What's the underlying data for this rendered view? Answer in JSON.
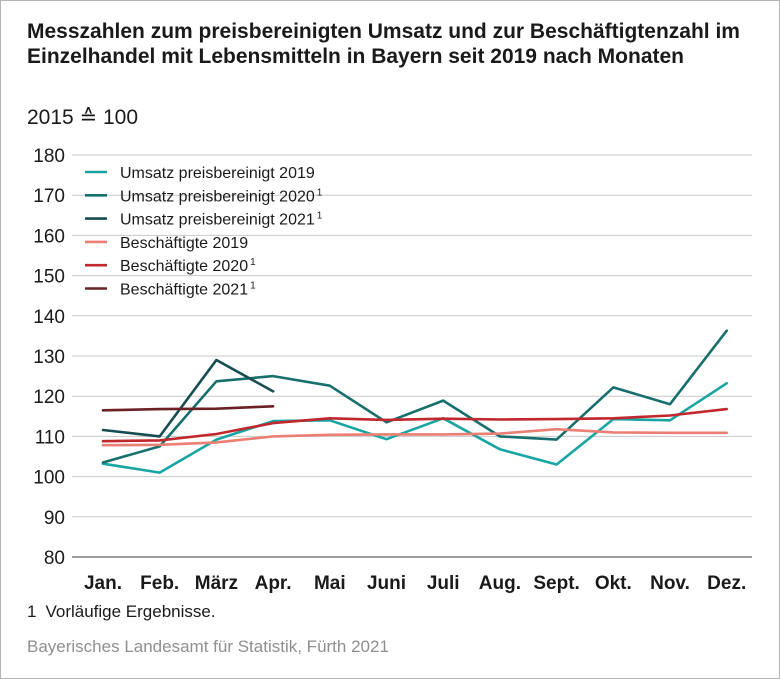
{
  "title": "Messzahlen zum preisbereinigten Umsatz und zur Beschäftigtenzahl im Einzelhandel mit Lebensmitteln in Bayern seit 2019 nach Monaten",
  "subtitle": "2015 ≙ 100",
  "footnote": {
    "number": "1",
    "text": "Vorläufige Ergebnisse."
  },
  "source": "Bayerisches Landesamt für Statistik, Fürth 2021",
  "chart_data": {
    "type": "line",
    "title": "Messzahlen zum preisbereinigten Umsatz und zur Beschäftigtenzahl im Einzelhandel mit Lebensmitteln in Bayern seit 2019 nach Monaten",
    "subtitle": "2015 ≙ 100",
    "xlabel": "",
    "ylabel": "",
    "categories": [
      "Jan.",
      "Feb.",
      "März",
      "Apr.",
      "Mai",
      "Juni",
      "Juli",
      "Aug.",
      "Sept.",
      "Okt.",
      "Nov.",
      "Dez."
    ],
    "ylim": [
      80,
      180
    ],
    "yticks": [
      80,
      90,
      100,
      110,
      120,
      130,
      140,
      150,
      160,
      170,
      180
    ],
    "grid": "horizontal",
    "legend_position": "top-left",
    "series": [
      {
        "name": "Umsatz preisbereinigt 2019",
        "footnote": "",
        "color": "#1aa5a5",
        "values": [
          103.2,
          101.0,
          109.2,
          113.8,
          114.0,
          109.3,
          114.5,
          106.8,
          103.0,
          114.3,
          114.0,
          123.2
        ]
      },
      {
        "name": "Umsatz preisbereinigt 2020",
        "footnote": "1",
        "color": "#17706e",
        "values": [
          103.5,
          107.5,
          123.7,
          125.0,
          122.6,
          113.5,
          118.9,
          110.0,
          109.2,
          122.2,
          118.0,
          136.3
        ]
      },
      {
        "name": "Umsatz preisbereinigt 2021",
        "footnote": "1",
        "color": "#174d52",
        "values": [
          111.6,
          110.0,
          129.0,
          121.2,
          null,
          null,
          null,
          null,
          null,
          null,
          null,
          null
        ]
      },
      {
        "name": "Beschäftigte 2019",
        "footnote": "",
        "color": "#ec7f74",
        "values": [
          107.8,
          107.9,
          108.5,
          110.0,
          110.4,
          110.5,
          110.5,
          110.7,
          111.8,
          111.0,
          110.9,
          110.9
        ]
      },
      {
        "name": "Beschäftigte 2020",
        "footnote": "1",
        "color": "#c1272d",
        "values": [
          108.8,
          109.0,
          110.6,
          113.3,
          114.5,
          114.1,
          114.4,
          114.2,
          114.3,
          114.5,
          115.2,
          116.8
        ]
      },
      {
        "name": "Beschäftigte 2021",
        "footnote": "1",
        "color": "#6b2124",
        "values": [
          116.5,
          116.8,
          116.9,
          117.5,
          null,
          null,
          null,
          null,
          null,
          null,
          null,
          null
        ]
      }
    ]
  }
}
